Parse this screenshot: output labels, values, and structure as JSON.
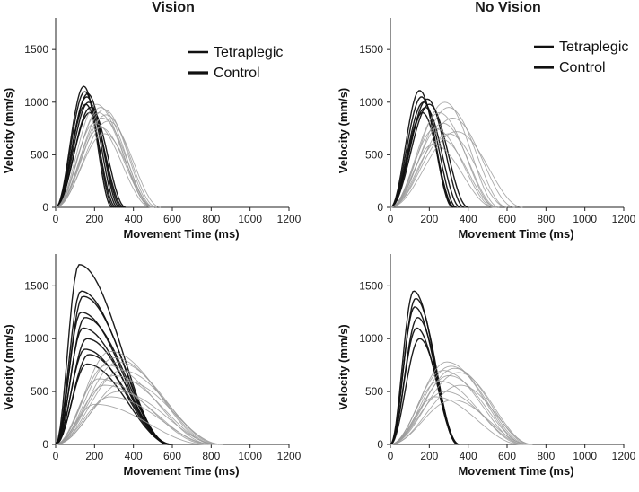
{
  "column_titles": [
    "Vision",
    "No Vision"
  ],
  "colors": {
    "tetraplegic": "#9a9a9a",
    "control": "#111111",
    "axis": "#222222"
  },
  "chart_data": [
    {
      "type": "line",
      "panel": "top-left",
      "column": "Vision",
      "xlabel": "Movement Time (ms)",
      "ylabel": "Velocity (mm/s)",
      "xlim": [
        0,
        1200
      ],
      "ylim": [
        0,
        1800
      ],
      "xticks": [
        0,
        200,
        400,
        600,
        800,
        1000,
        1200
      ],
      "yticks": [
        0,
        500,
        1000,
        1500
      ],
      "legend": {
        "position": "top-right",
        "entries": [
          "Tetraplegic",
          "Control"
        ]
      },
      "series": [
        {
          "group": "Control",
          "peaks": [
            [
              145,
              1150
            ],
            [
              150,
              1100
            ],
            [
              160,
              1050
            ],
            [
              170,
              1000
            ],
            [
              155,
              980
            ],
            [
              180,
              950
            ],
            [
              165,
              1080
            ],
            [
              175,
              900
            ]
          ],
          "end": 340
        },
        {
          "group": "Tetraplegic",
          "peaks": [
            [
              210,
              980
            ],
            [
              230,
              950
            ],
            [
              250,
              930
            ],
            [
              220,
              900
            ],
            [
              260,
              880
            ],
            [
              240,
              850
            ],
            [
              200,
              800
            ],
            [
              270,
              820
            ],
            [
              230,
              760
            ],
            [
              250,
              700
            ]
          ],
          "end": 560
        }
      ]
    },
    {
      "type": "line",
      "panel": "top-right",
      "column": "No Vision",
      "xlabel": "Movement Time (ms)",
      "ylabel": "Velocity (mm/s)",
      "xlim": [
        0,
        1200
      ],
      "ylim": [
        0,
        1800
      ],
      "xticks": [
        0,
        200,
        400,
        600,
        800,
        1000,
        1200
      ],
      "yticks": [
        0,
        500,
        1000,
        1500
      ],
      "legend": {
        "position": "top-right",
        "entries": [
          "Tetraplegic",
          "Control"
        ]
      },
      "series": [
        {
          "group": "Control",
          "peaks": [
            [
              150,
              1110
            ],
            [
              160,
              1050
            ],
            [
              170,
              1000
            ],
            [
              180,
              950
            ],
            [
              190,
              1030
            ],
            [
              165,
              900
            ],
            [
              200,
              980
            ]
          ],
          "end": 380
        },
        {
          "group": "Tetraplegic",
          "peaks": [
            [
              280,
              1000
            ],
            [
              300,
              950
            ],
            [
              250,
              900
            ],
            [
              320,
              850
            ],
            [
              270,
              800
            ],
            [
              230,
              750
            ],
            [
              300,
              700
            ],
            [
              260,
              650
            ],
            [
              340,
              720
            ],
            [
              220,
              600
            ]
          ],
          "end": 600
        }
      ]
    },
    {
      "type": "line",
      "panel": "bottom-left",
      "column": "Vision",
      "xlabel": "Movement Time (ms)",
      "ylabel": "Velocity (mm/s)",
      "xlim": [
        0,
        1200
      ],
      "ylim": [
        0,
        1800
      ],
      "xticks": [
        0,
        200,
        400,
        600,
        800,
        1000,
        1200
      ],
      "yticks": [
        0,
        500,
        1000,
        1500
      ],
      "series": [
        {
          "group": "Control",
          "peaks": [
            [
              120,
              1700
            ],
            [
              130,
              1450
            ],
            [
              140,
              1400
            ],
            [
              130,
              1250
            ],
            [
              150,
              1200
            ],
            [
              140,
              1100
            ],
            [
              160,
              1000
            ],
            [
              150,
              900
            ],
            [
              170,
              850
            ],
            [
              160,
              760
            ]
          ],
          "end": 700
        },
        {
          "group": "Tetraplegic",
          "peaks": [
            [
              280,
              880
            ],
            [
              300,
              820
            ],
            [
              320,
              780
            ],
            [
              260,
              750
            ],
            [
              340,
              700
            ],
            [
              300,
              650
            ],
            [
              220,
              620
            ],
            [
              360,
              600
            ],
            [
              250,
              560
            ],
            [
              320,
              500
            ],
            [
              280,
              450
            ],
            [
              200,
              380
            ]
          ],
          "end": 880
        }
      ]
    },
    {
      "type": "line",
      "panel": "bottom-right",
      "column": "No Vision",
      "xlabel": "Movement Time (ms)",
      "ylabel": "Velocity (mm/s)",
      "xlim": [
        0,
        1200
      ],
      "ylim": [
        0,
        1800
      ],
      "xticks": [
        0,
        200,
        400,
        600,
        800,
        1000,
        1200
      ],
      "yticks": [
        0,
        500,
        1000,
        1500
      ],
      "series": [
        {
          "group": "Control",
          "peaks": [
            [
              120,
              1450
            ],
            [
              130,
              1380
            ],
            [
              125,
              1300
            ],
            [
              140,
              1200
            ],
            [
              135,
              1100
            ],
            [
              150,
              1000
            ]
          ],
          "end": 420
        },
        {
          "group": "Tetraplegic",
          "peaks": [
            [
              290,
              780
            ],
            [
              310,
              740
            ],
            [
              330,
              720
            ],
            [
              270,
              700
            ],
            [
              350,
              680
            ],
            [
              300,
              650
            ],
            [
              250,
              600
            ],
            [
              360,
              560
            ],
            [
              280,
              500
            ],
            [
              230,
              450
            ],
            [
              320,
              420
            ]
          ],
          "end": 750
        }
      ]
    }
  ]
}
